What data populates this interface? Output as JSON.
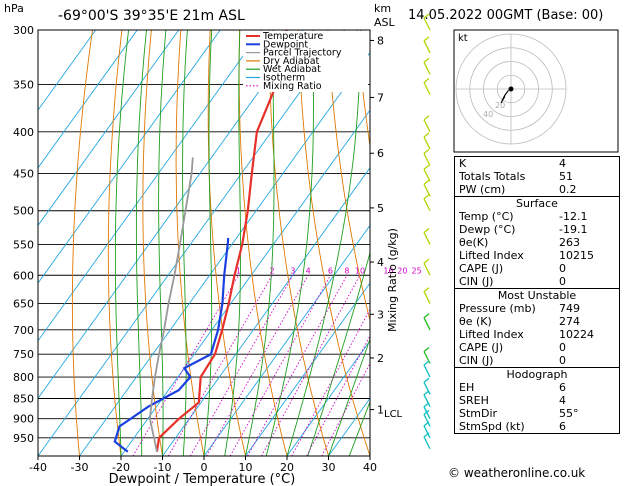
{
  "header": {
    "pressure_unit": "hPa",
    "location": "-69°00'S 39°35'E 21m ASL",
    "altitude_unit_line1": "km",
    "altitude_unit_line2": "ASL",
    "datetime": "14.05.2022 00GMT (Base: 00)"
  },
  "chart_data": [
    {
      "type": "line",
      "title": "",
      "xlabel": "Dewpoint / Temperature (°C)",
      "ylabel": "hPa",
      "secondary_ylabel": "Mixing Ratio (g/kg)",
      "x_ticks": [
        -40,
        -30,
        -20,
        -10,
        0,
        10,
        20,
        30,
        40
      ],
      "xlim": [
        -40,
        40
      ],
      "pressure_ticks": [
        300,
        350,
        400,
        450,
        500,
        550,
        600,
        650,
        700,
        750,
        800,
        850,
        900,
        950
      ],
      "ylim": [
        1000,
        300
      ],
      "height_ticks_km": [
        {
          "label": "8",
          "p": 309
        },
        {
          "label": "7",
          "p": 363
        },
        {
          "label": "6",
          "p": 425
        },
        {
          "label": "5",
          "p": 496
        },
        {
          "label": "4",
          "p": 578
        },
        {
          "label": "3",
          "p": 670
        },
        {
          "label": "2",
          "p": 758
        },
        {
          "label": "1",
          "p": 877
        }
      ],
      "lcl": {
        "label": "LCL",
        "p": 885
      },
      "mixing_ratio_labels": [
        "1",
        "2",
        "3",
        "4",
        "6",
        "8",
        "10",
        "16",
        "20",
        "25"
      ],
      "legend": [
        "Temperature",
        "Dewpoint",
        "Parcel Trajectory",
        "Dry Adiabat",
        "Wet Adiabat",
        "Isotherm",
        "Mixing Ratio"
      ],
      "legend_position": "top-center",
      "colors": {
        "temperature": "#e8302a",
        "dewpoint": "#1a3fe0",
        "parcel": "#999999",
        "dry_adiabat": "#e07800",
        "wet_adiabat": "#1f9e1f",
        "isotherm": "#24a8e0",
        "mixing_ratio": "#d100c8"
      },
      "series": [
        {
          "name": "Temperature",
          "points": [
            [
              988,
              -12.1
            ],
            [
              950,
              -14.0
            ],
            [
              900,
              -12.5
            ],
            [
              860,
              -10.5
            ],
            [
              800,
              -14.5
            ],
            [
              750,
              -15.0
            ],
            [
              700,
              -17.5
            ],
            [
              650,
              -20.5
            ],
            [
              600,
              -24.0
            ],
            [
              550,
              -27.5
            ],
            [
              500,
              -32.0
            ],
            [
              450,
              -37.5
            ],
            [
              400,
              -43.5
            ],
            [
              350,
              -47.0
            ],
            [
              300,
              -54.0
            ]
          ]
        },
        {
          "name": "Dewpoint",
          "points": [
            [
              988,
              -19.1
            ],
            [
              960,
              -24.0
            ],
            [
              920,
              -25.5
            ],
            [
              870,
              -22.0
            ],
            [
              830,
              -17.5
            ],
            [
              800,
              -17.0
            ],
            [
              780,
              -20.0
            ],
            [
              750,
              -16.0
            ],
            [
              700,
              -18.5
            ],
            [
              650,
              -22.0
            ],
            [
              600,
              -26.5
            ],
            [
              550,
              -31.0
            ],
            [
              540,
              -32.0
            ]
          ]
        },
        {
          "name": "Parcel Trajectory",
          "points": [
            [
              988,
              -12.1
            ],
            [
              950,
              -15.2
            ],
            [
              900,
              -19.5
            ],
            [
              850,
              -22.5
            ],
            [
              800,
              -25.5
            ],
            [
              750,
              -28.5
            ],
            [
              700,
              -31.5
            ],
            [
              650,
              -35.0
            ],
            [
              600,
              -38.5
            ],
            [
              550,
              -42.5
            ],
            [
              500,
              -47.0
            ],
            [
              450,
              -52.0
            ],
            [
              430,
              -54.5
            ]
          ]
        }
      ]
    },
    {
      "type": "scatter",
      "title": "kt",
      "ring_labels": [
        "20",
        "40"
      ],
      "hodograph_points": [
        [
          -1.0,
          -0.5
        ],
        [
          -2.5,
          -2.5
        ],
        [
          -3.5,
          -4.5
        ],
        [
          -2.5,
          -3.0
        ],
        [
          -4.0,
          -5.5
        ]
      ]
    }
  ],
  "indices": {
    "basic": [
      {
        "label": "K",
        "value": "4"
      },
      {
        "label": "Totals Totals",
        "value": "51"
      },
      {
        "label": "PW (cm)",
        "value": "0.2"
      }
    ],
    "surface": {
      "title": "Surface",
      "rows": [
        {
          "label": "Temp (°C)",
          "value": "-12.1"
        },
        {
          "label": "Dewp (°C)",
          "value": "-19.1"
        },
        {
          "label": "θe(K)",
          "value": "263"
        },
        {
          "label": "Lifted Index",
          "value": "10215"
        },
        {
          "label": "CAPE (J)",
          "value": "0"
        },
        {
          "label": "CIN (J)",
          "value": "0"
        }
      ]
    },
    "most_unstable": {
      "title": "Most Unstable",
      "rows": [
        {
          "label": "Pressure (mb)",
          "value": "749"
        },
        {
          "label": "θe (K)",
          "value": "274"
        },
        {
          "label": "Lifted Index",
          "value": "10224"
        },
        {
          "label": "CAPE (J)",
          "value": "0"
        },
        {
          "label": "CIN (J)",
          "value": "0"
        }
      ]
    },
    "hodograph": {
      "title": "Hodograph",
      "rows": [
        {
          "label": "EH",
          "value": "6"
        },
        {
          "label": "SREH",
          "value": "4"
        },
        {
          "label": "StmDir",
          "value": "55°"
        },
        {
          "label": "StmSpd (kt)",
          "value": "6"
        }
      ]
    }
  },
  "wind_barb_colors": [
    "#b5d400",
    "#22bb22",
    "#10c0c0"
  ],
  "footer": {
    "copyright": "© weatheronline.co.uk"
  }
}
